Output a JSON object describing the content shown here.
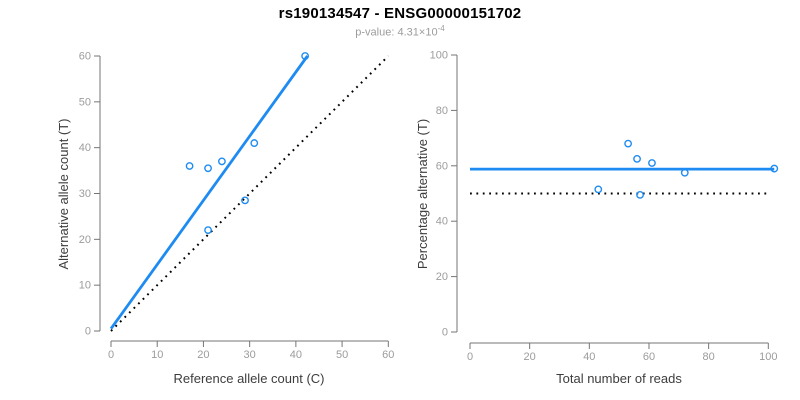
{
  "title": "rs190134547 - ENSG00000151702",
  "subtitle": {
    "prefix": "p-value: ",
    "mantissa": "4.31",
    "multiplier": "×10",
    "exponent": "-4"
  },
  "colors": {
    "accent_blue": "#1E8BF2",
    "line_black": "#000000",
    "axis_gray": "#757575",
    "tick_label_gray": "#9C9C9C",
    "axis_title_gray": "#3D3D3D",
    "background": "#FFFFFF"
  },
  "chart_data": [
    {
      "type": "scatter",
      "panel": "allele-counts",
      "xlabel": "Reference allele count (C)",
      "ylabel": "Alternative allele count (T)",
      "xlim": [
        0,
        60
      ],
      "ylim": [
        0,
        60
      ],
      "xticks": [
        0,
        10,
        20,
        30,
        40,
        50,
        60
      ],
      "yticks": [
        0,
        10,
        20,
        30,
        40,
        50,
        60
      ],
      "grid": false,
      "points": [
        [
          17,
          36
        ],
        [
          21,
          35.5
        ],
        [
          24,
          37
        ],
        [
          21,
          22
        ],
        [
          29,
          28.5
        ],
        [
          31,
          41
        ],
        [
          42,
          60
        ]
      ],
      "lines": [
        {
          "name": "fit-line",
          "x1": 0,
          "y1": 0.5,
          "x2": 42.5,
          "y2": 60,
          "color": "accent_blue",
          "style": "solid"
        },
        {
          "name": "identity-line",
          "x1": 0,
          "y1": 0,
          "x2": 60,
          "y2": 60,
          "color": "line_black",
          "style": "dotted"
        }
      ]
    },
    {
      "type": "scatter",
      "panel": "percentage-alternative",
      "xlabel": "Total number of reads",
      "ylabel": "Percentage alternative (T)",
      "xlim": [
        0,
        100
      ],
      "ylim": [
        0,
        100
      ],
      "xticks": [
        0,
        20,
        40,
        60,
        80,
        100
      ],
      "yticks": [
        0,
        20,
        40,
        60,
        80,
        100
      ],
      "grid": false,
      "points": [
        [
          43,
          51.5
        ],
        [
          53,
          68
        ],
        [
          56,
          62.5
        ],
        [
          57,
          49.5
        ],
        [
          61,
          61
        ],
        [
          72,
          57.5
        ],
        [
          102,
          59
        ]
      ],
      "lines": [
        {
          "name": "mean-percentage-line",
          "x1": 0,
          "y1": 58.8,
          "x2": 102,
          "y2": 58.8,
          "color": "accent_blue",
          "style": "solid"
        },
        {
          "name": "null-50pct-line",
          "x1": 0,
          "y1": 50,
          "x2": 100,
          "y2": 50,
          "color": "line_black",
          "style": "dotted"
        }
      ]
    }
  ]
}
